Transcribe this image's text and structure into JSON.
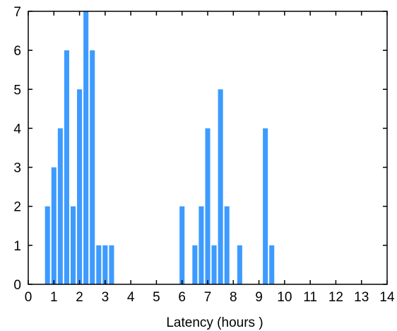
{
  "chart_data": {
    "type": "bar",
    "xlabel": "Latency (hours )",
    "ylabel": "",
    "xlim": [
      0,
      14
    ],
    "ylim": [
      0,
      7
    ],
    "xticks": [
      0,
      1,
      2,
      3,
      4,
      5,
      6,
      7,
      8,
      9,
      10,
      11,
      12,
      13,
      14
    ],
    "yticks": [
      0,
      1,
      2,
      3,
      4,
      5,
      6,
      7
    ],
    "bin_width": 0.25,
    "bar_color": "#3d9bff",
    "grid": false,
    "bins": [
      {
        "x": 0.75,
        "value": 2
      },
      {
        "x": 1.0,
        "value": 3
      },
      {
        "x": 1.25,
        "value": 4
      },
      {
        "x": 1.5,
        "value": 6
      },
      {
        "x": 1.75,
        "value": 2
      },
      {
        "x": 2.0,
        "value": 5
      },
      {
        "x": 2.25,
        "value": 7
      },
      {
        "x": 2.5,
        "value": 6
      },
      {
        "x": 2.75,
        "value": 1
      },
      {
        "x": 3.0,
        "value": 1
      },
      {
        "x": 3.25,
        "value": 1
      },
      {
        "x": 6.0,
        "value": 2
      },
      {
        "x": 6.5,
        "value": 1
      },
      {
        "x": 6.75,
        "value": 2
      },
      {
        "x": 7.0,
        "value": 4
      },
      {
        "x": 7.25,
        "value": 1
      },
      {
        "x": 7.5,
        "value": 5
      },
      {
        "x": 7.75,
        "value": 2
      },
      {
        "x": 8.25,
        "value": 1
      },
      {
        "x": 9.25,
        "value": 4
      },
      {
        "x": 9.5,
        "value": 1
      }
    ]
  }
}
